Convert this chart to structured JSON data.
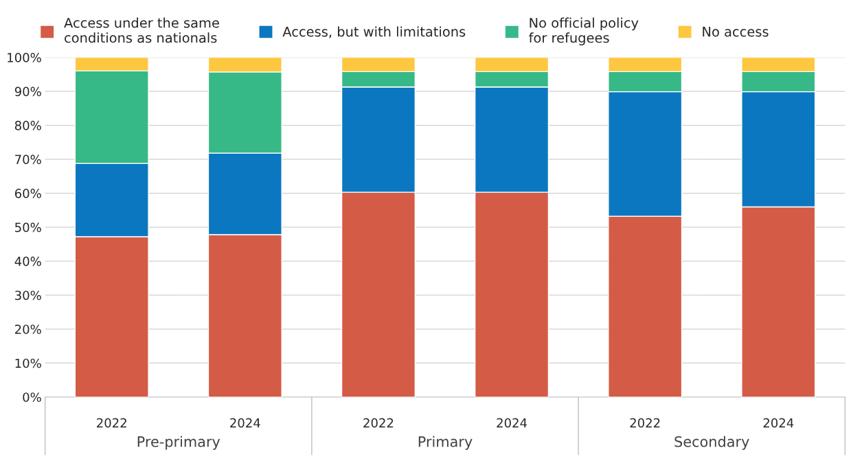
{
  "chart_data": {
    "type": "bar",
    "stacked": true,
    "categories": [
      "2022",
      "2024",
      "2022",
      "2024",
      "2022",
      "2024"
    ],
    "series": [
      {
        "name": "Access under the same\nconditions as nationals",
        "color": "#d45b45",
        "values": [
          47.2,
          47.8,
          60.3,
          60.3,
          53.2,
          56.0
        ]
      },
      {
        "name": "Access, but with limitations",
        "color": "#0a77c0",
        "values": [
          21.6,
          24.0,
          31.0,
          31.0,
          36.7,
          33.9
        ]
      },
      {
        "name": "No official policy\nfor refugees",
        "color": "#37b987",
        "values": [
          27.2,
          23.9,
          4.5,
          4.5,
          5.9,
          5.9
        ]
      },
      {
        "name": "No access",
        "color": "#fdc73f",
        "values": [
          4.0,
          4.3,
          4.2,
          4.2,
          4.2,
          4.2
        ]
      }
    ],
    "annotations": [
      "Pre-primary",
      "Primary",
      "Secondary"
    ],
    "ylim": [
      0,
      100
    ],
    "yticks": [
      {
        "value": 0,
        "label": "0%"
      },
      {
        "value": 10,
        "label": "10%"
      },
      {
        "value": 20,
        "label": "20%"
      },
      {
        "value": 30,
        "label": "30%"
      },
      {
        "value": 40,
        "label": "40%"
      },
      {
        "value": 50,
        "label": "50%"
      },
      {
        "value": 60,
        "label": "60%"
      },
      {
        "value": 70,
        "label": "70%"
      },
      {
        "value": 80,
        "label": "80%"
      },
      {
        "value": 90,
        "label": "90%"
      },
      {
        "value": 100,
        "label": "100%"
      }
    ],
    "grid": "y",
    "legend": "top"
  }
}
